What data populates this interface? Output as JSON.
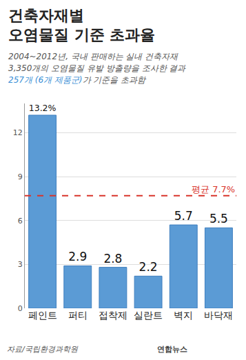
{
  "chart_data": {
    "type": "bar",
    "title": "건축자재별\n오염물질 기준 초과율",
    "subtitle": "2004~2012년, 국내 판매하는 실내 건축자재\n3,350개의 오염물질 유발 방출량을 조사한 결과\n257개 (6개 제품군)가 기준을 초과함",
    "categories": [
      "페인트",
      "퍼티",
      "접착제",
      "실란트",
      "벽지",
      "바닥재"
    ],
    "values": [
      13.2,
      2.9,
      2.8,
      2.2,
      5.7,
      5.5
    ],
    "value_labels": [
      "13.2%",
      "2.9",
      "2.8",
      "2.2",
      "5.7",
      "5.5"
    ],
    "data_labels": true,
    "color": "#5b9bd5",
    "ylim": [
      0,
      14
    ],
    "yticks": [
      0,
      3,
      6,
      9,
      12
    ],
    "grid": true,
    "reference_line": {
      "value": 7.7,
      "label": "평균 7.7%",
      "color": "#d9342b"
    },
    "source": "자료/국립환경과학원",
    "credit": "연합뉴스"
  }
}
